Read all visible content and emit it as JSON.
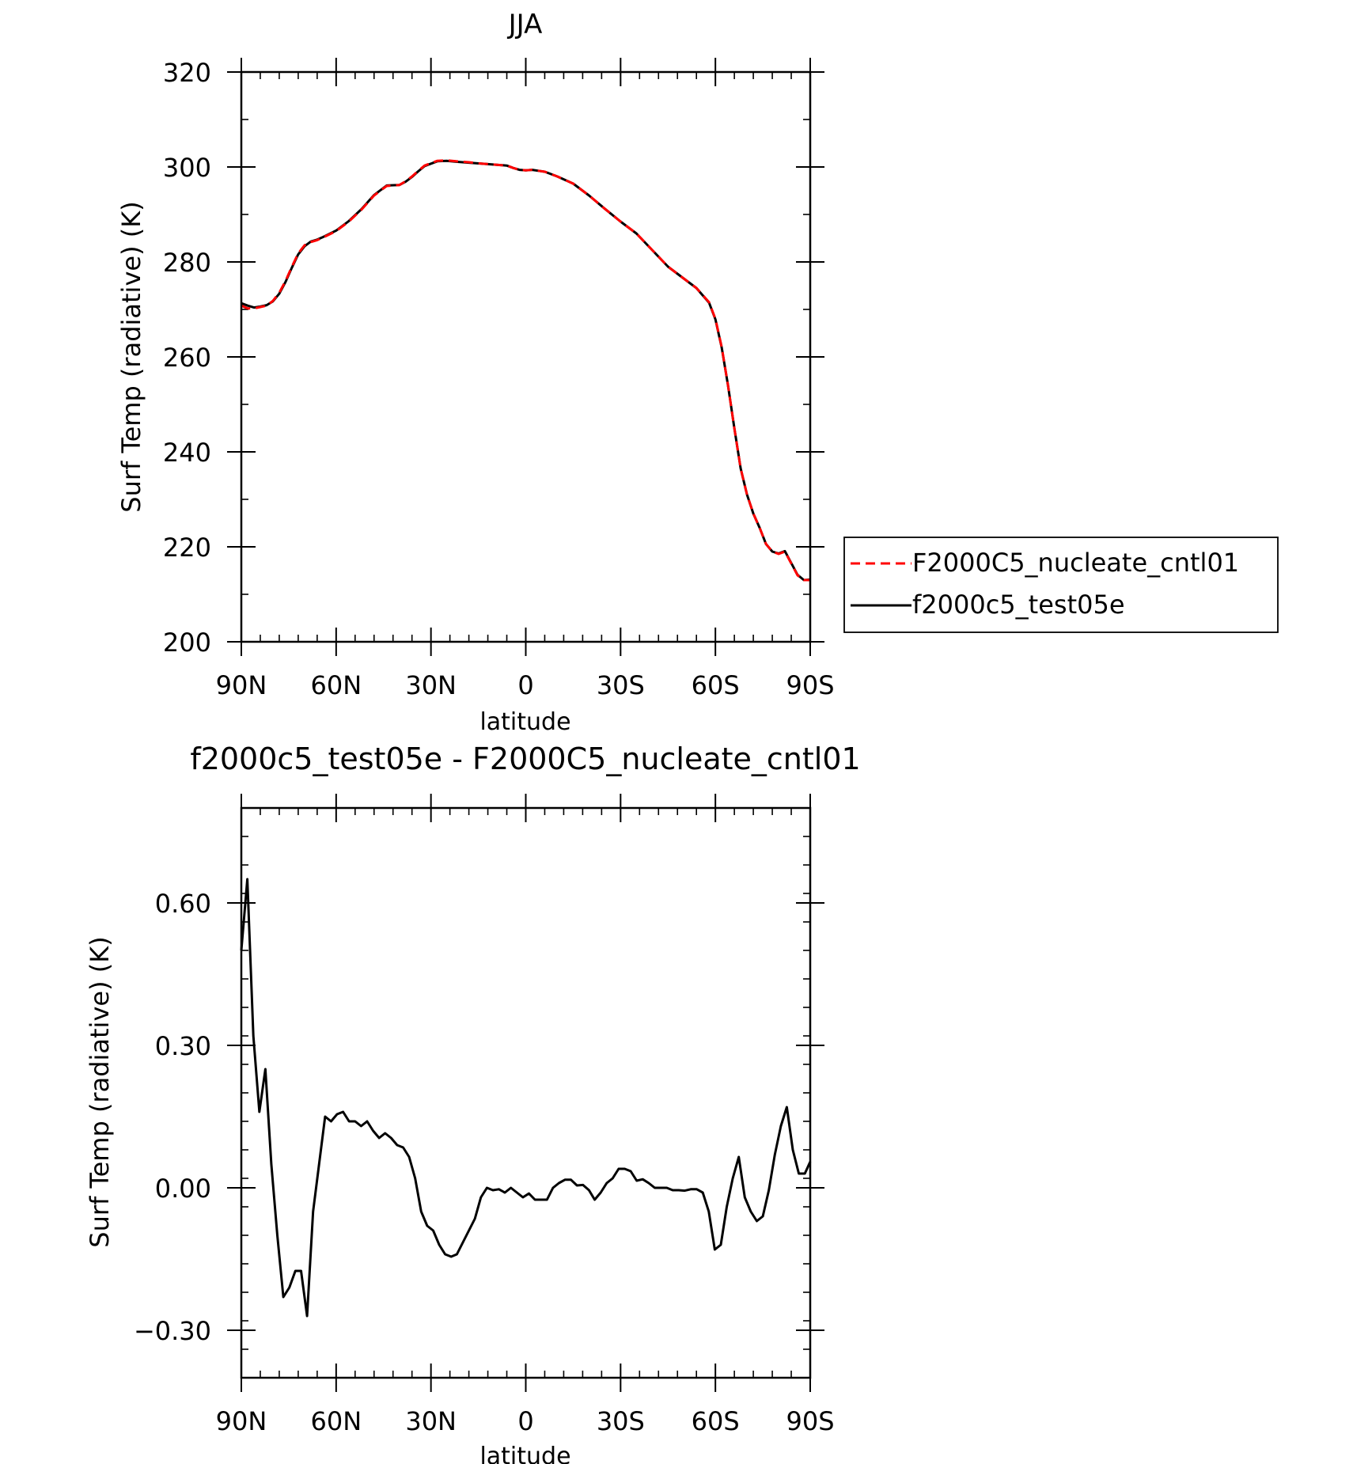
{
  "chart_data": [
    {
      "type": "line",
      "title": "JJA",
      "xlabel": "latitude",
      "ylabel": "Surf Temp (radiative) (K)",
      "xlim": [
        90,
        -90
      ],
      "ylim": [
        200,
        320
      ],
      "x_ticks": [
        90,
        60,
        30,
        0,
        -30,
        -60,
        -90
      ],
      "x_tick_labels": [
        "90N",
        "60N",
        "30N",
        "0",
        "30S",
        "60S",
        "90S"
      ],
      "y_ticks": [
        200,
        220,
        240,
        260,
        280,
        300,
        320
      ],
      "y_tick_labels": [
        "200",
        "220",
        "240",
        "260",
        "280",
        "300",
        "320"
      ],
      "legend_position": "right",
      "series": [
        {
          "name": "F2000C5_nucleate_cntl01",
          "color": "#ff0000",
          "dash": "dashed",
          "x": [
            90,
            88,
            86,
            84,
            82,
            80,
            78,
            76,
            74,
            72,
            70,
            68,
            66,
            64,
            60,
            56,
            52,
            48,
            44,
            40,
            38,
            36,
            34,
            32,
            30,
            28,
            25,
            22,
            18,
            14,
            10,
            6,
            4,
            2,
            0,
            -2,
            -4,
            -6,
            -10,
            -15,
            -20,
            -25,
            -30,
            -35,
            -40,
            -45,
            -50,
            -54,
            -58,
            -60,
            -62,
            -64,
            -66,
            -68,
            -70,
            -72,
            -74,
            -76,
            -78,
            -80,
            -82,
            -84,
            -86,
            -88,
            -90
          ],
          "y": [
            270.8,
            270.2,
            270.2,
            270.5,
            270.8,
            271.8,
            273.5,
            276.0,
            279.0,
            281.8,
            283.5,
            284.2,
            284.6,
            285.2,
            286.5,
            288.5,
            291.0,
            294.0,
            296.0,
            296.2,
            297.0,
            298.0,
            299.2,
            300.3,
            300.8,
            301.3,
            301.4,
            301.2,
            301.0,
            300.7,
            300.5,
            300.3,
            299.8,
            299.4,
            299.3,
            299.4,
            299.2,
            299.0,
            298.0,
            296.5,
            294.0,
            291.2,
            288.5,
            286.0,
            282.5,
            279.0,
            276.5,
            274.5,
            271.5,
            268.0,
            262.0,
            254.0,
            245.0,
            236.5,
            231.0,
            227.0,
            224.0,
            220.6,
            219.0,
            218.5,
            219.0,
            216.5,
            214.0,
            213.0,
            213.0
          ]
        },
        {
          "name": "f2000c5_test05e",
          "color": "#000000",
          "dash": "solid",
          "x": [
            90,
            88,
            86,
            84,
            82,
            80,
            78,
            76,
            74,
            72,
            70,
            68,
            66,
            64,
            60,
            56,
            52,
            48,
            44,
            40,
            38,
            36,
            34,
            32,
            30,
            28,
            25,
            22,
            18,
            14,
            10,
            6,
            4,
            2,
            0,
            -2,
            -4,
            -6,
            -10,
            -15,
            -20,
            -25,
            -30,
            -35,
            -40,
            -45,
            -50,
            -54,
            -58,
            -60,
            -62,
            -64,
            -66,
            -68,
            -70,
            -72,
            -74,
            -76,
            -78,
            -80,
            -82,
            -84,
            -86,
            -88,
            -90
          ],
          "y": [
            271.3,
            270.8,
            270.4,
            270.6,
            270.9,
            271.7,
            273.3,
            275.8,
            278.8,
            281.6,
            283.3,
            284.3,
            284.7,
            285.3,
            286.6,
            288.6,
            291.1,
            294.1,
            296.1,
            296.2,
            296.9,
            297.9,
            299.1,
            300.2,
            300.7,
            301.2,
            301.3,
            301.1,
            300.9,
            300.7,
            300.5,
            300.3,
            299.8,
            299.4,
            299.3,
            299.4,
            299.2,
            299.0,
            298.0,
            296.5,
            294.0,
            291.2,
            288.5,
            286.0,
            282.5,
            279.0,
            276.5,
            274.5,
            271.4,
            267.9,
            261.9,
            254.0,
            245.0,
            236.5,
            231.0,
            227.0,
            224.0,
            220.6,
            219.0,
            218.6,
            219.1,
            216.6,
            214.1,
            213.0,
            213.1
          ]
        }
      ]
    },
    {
      "type": "line",
      "title": "f2000c5_test05e - F2000C5_nucleate_cntl01",
      "xlabel": "latitude",
      "ylabel": "Surf Temp (radiative) (K)",
      "xlim": [
        90,
        -90
      ],
      "ylim": [
        -0.4,
        0.8
      ],
      "x_ticks": [
        90,
        60,
        30,
        0,
        -30,
        -60,
        -90
      ],
      "x_tick_labels": [
        "90N",
        "60N",
        "30N",
        "0",
        "30S",
        "60S",
        "90S"
      ],
      "y_ticks": [
        -0.3,
        0.0,
        0.3,
        0.6
      ],
      "y_tick_labels": [
        "-0.30",
        "0.00",
        "0.30",
        "0.60"
      ],
      "series": [
        {
          "name": "",
          "color": "#000000",
          "dash": "solid",
          "x": [
            90,
            88.1,
            86.2,
            84.3,
            82.4,
            80.5,
            78.6,
            76.7,
            74.8,
            72.9,
            71.1,
            69.2,
            67.3,
            65.4,
            63.5,
            61.6,
            59.7,
            57.8,
            55.9,
            54.0,
            52.1,
            50.2,
            48.3,
            46.4,
            44.5,
            42.6,
            40.7,
            38.8,
            36.9,
            35.0,
            33.1,
            31.2,
            29.3,
            27.4,
            25.5,
            23.6,
            21.8,
            19.9,
            18.0,
            16.1,
            14.2,
            12.3,
            10.4,
            8.5,
            6.6,
            4.7,
            2.8,
            0.9,
            -1.0,
            -2.9,
            -4.8,
            -6.7,
            -8.6,
            -10.5,
            -12.4,
            -14.3,
            -16.2,
            -18.1,
            -20.0,
            -21.8,
            -23.7,
            -25.6,
            -27.5,
            -29.4,
            -31.3,
            -33.2,
            -35.1,
            -37.0,
            -38.9,
            -40.8,
            -42.7,
            -44.6,
            -46.5,
            -48.4,
            -50.3,
            -52.2,
            -54.1,
            -56.0,
            -57.9,
            -59.8,
            -61.7,
            -63.6,
            -65.5,
            -67.4,
            -69.3,
            -71.2,
            -73.1,
            -75.0,
            -76.9,
            -78.8,
            -80.7,
            -82.6,
            -84.5,
            -86.4,
            -88.3,
            -90.0
          ],
          "y": [
            0.5,
            0.65,
            0.32,
            0.16,
            0.25,
            0.05,
            -0.1,
            -0.23,
            -0.21,
            -0.175,
            -0.175,
            -0.27,
            -0.05,
            0.05,
            0.15,
            0.14,
            0.155,
            0.16,
            0.14,
            0.14,
            0.13,
            0.14,
            0.12,
            0.105,
            0.115,
            0.105,
            0.09,
            0.085,
            0.065,
            0.02,
            -0.05,
            -0.08,
            -0.09,
            -0.12,
            -0.14,
            -0.145,
            -0.14,
            -0.115,
            -0.09,
            -0.065,
            -0.02,
            0.0,
            -0.005,
            -0.003,
            -0.01,
            0.0,
            -0.01,
            -0.02,
            -0.012,
            -0.025,
            -0.025,
            -0.025,
            0.0,
            0.01,
            0.017,
            0.017,
            0.005,
            0.006,
            -0.005,
            -0.025,
            -0.01,
            0.01,
            0.02,
            0.04,
            0.04,
            0.035,
            0.015,
            0.018,
            0.01,
            0.0,
            0.0,
            0.0,
            -0.005,
            -0.005,
            -0.006,
            -0.003,
            -0.003,
            -0.01,
            -0.05,
            -0.13,
            -0.12,
            -0.04,
            0.02,
            0.065,
            -0.02,
            -0.05,
            -0.07,
            -0.06,
            -0.005,
            0.07,
            0.13,
            0.17,
            0.08,
            0.03,
            0.03,
            0.055
          ]
        }
      ]
    }
  ]
}
